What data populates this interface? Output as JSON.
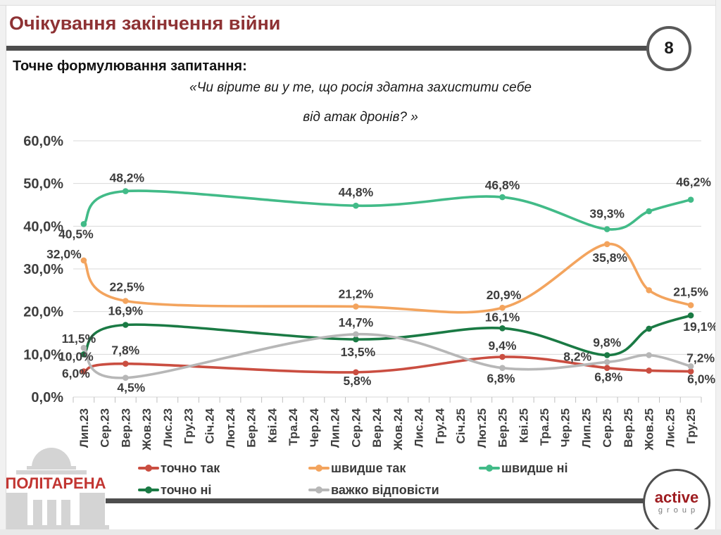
{
  "header": {
    "title": "Очікування закінчення війни",
    "page_number": "8"
  },
  "question": {
    "label": "Точне формулювання запитання:",
    "line1": "«Чи вірите ви у те, що росія здатна захистити себе",
    "line2": "від атак дронів? »"
  },
  "chart_data": {
    "type": "line",
    "x_categories": [
      "Лип.23",
      "Сер.23",
      "Вер.23",
      "Жов.23",
      "Лис.23",
      "Гру.23",
      "Січ.24",
      "Лют.24",
      "Бер.24",
      "Кві.24",
      "Тра.24",
      "Чер.24",
      "Лип.24",
      "Сер.24",
      "Вер.24",
      "Жов.24",
      "Лис.24",
      "Гру.24",
      "Січ.25",
      "Лют.25",
      "Бер.25",
      "Кві.25",
      "Тра.25",
      "Чер.25",
      "Лип.25",
      "Сер.25",
      "Вер.25",
      "Жов.25",
      "Лис.25",
      "Гру.25"
    ],
    "point_months": [
      "Лип.23",
      "Вер.23",
      "Сер.24",
      "Бер.25",
      "Сер.25",
      "Жов.25",
      "Гру.25"
    ],
    "point_month_indices": [
      0,
      2,
      13,
      20,
      25,
      27,
      29
    ],
    "ylim": [
      0,
      60
    ],
    "y_ticks": [
      0,
      10,
      20,
      30,
      40,
      50,
      60
    ],
    "y_tick_labels": [
      "0,0%",
      "10,0%",
      "20,0%",
      "30,0%",
      "40,0%",
      "50,0%",
      "60,0%"
    ],
    "grid": "horizontal",
    "legend_position": "bottom",
    "series": [
      {
        "name": "точно так",
        "color": "#ca4e41",
        "values": [
          6.0,
          7.8,
          5.8,
          9.4,
          6.8,
          6.2,
          6.0
        ],
        "display_labels": [
          "6,0%",
          "7,8%",
          "5,8%",
          "9,4%",
          "6,8%",
          null,
          "6,0%"
        ]
      },
      {
        "name": "швидше так",
        "color": "#f3a45e",
        "values": [
          32.0,
          22.5,
          21.2,
          20.9,
          35.8,
          25.0,
          21.5
        ],
        "display_labels": [
          "32,0%",
          "22,5%",
          "21,2%",
          "20,9%",
          "35,8%",
          null,
          "21,5%"
        ]
      },
      {
        "name": "швидше ні",
        "color": "#42bb88",
        "values": [
          40.5,
          48.2,
          44.8,
          46.8,
          39.3,
          43.5,
          46.2
        ],
        "display_labels": [
          "40,5%",
          "48,2%",
          "44,8%",
          "46,8%",
          "39,3%",
          null,
          "46,2%"
        ]
      },
      {
        "name": "точно ні",
        "color": "#1a7a44",
        "values": [
          10.0,
          16.9,
          13.5,
          16.1,
          9.8,
          16.0,
          19.1
        ],
        "display_labels": [
          "10,0%",
          "16,9%",
          "13,5%",
          "16,1%",
          "9,8%",
          null,
          "19,1%"
        ]
      },
      {
        "name": "важко відповісти",
        "color": "#b7b7b7",
        "values": [
          11.5,
          4.5,
          14.7,
          6.8,
          8.2,
          9.8,
          7.2
        ],
        "display_labels": [
          "11,5%",
          "4,5%",
          "14,7%",
          "6,8%",
          "8,2%",
          null,
          "7,2%"
        ]
      }
    ]
  },
  "footer": {
    "politarena": "ПОЛІТАРЕНА",
    "active_line1": "active",
    "active_line2": "group"
  }
}
